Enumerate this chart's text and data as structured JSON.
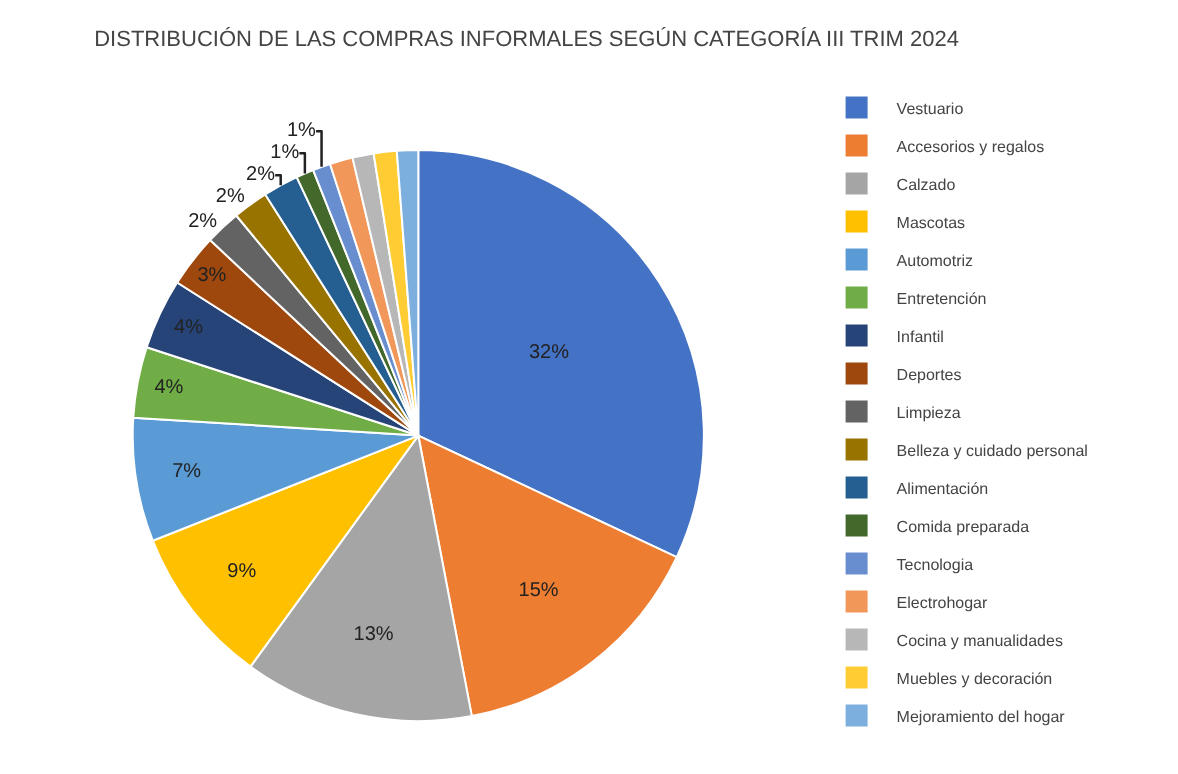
{
  "chart_data": {
    "type": "pie",
    "title": "DISTRIBUCIÓN DE LAS COMPRAS INFORMALES SEGÚN CATEGORÍA III TRIM 2024",
    "categories": [
      "Vestuario",
      "Accesorios y regalos",
      "Calzado",
      "Mascotas",
      "Automotriz",
      "Entretención",
      "Infantil",
      "Deportes",
      "Limpieza",
      "Belleza y cuidado personal",
      "Alimentación",
      "Comida preparada",
      "Tecnologia",
      "Electrohogar",
      "Cocina y manualidades",
      "Muebles y decoración",
      "Mejoramiento del hogar"
    ],
    "values": [
      32,
      15,
      13,
      9,
      7,
      4,
      4,
      3,
      2,
      2,
      2,
      1,
      1,
      1.3,
      1.2,
      1.3,
      1.2
    ],
    "value_labels": [
      "32%",
      "15%",
      "13%",
      "9%",
      "7%",
      "4%",
      "4%",
      "3%",
      "2%",
      "2%",
      "2%",
      "1%",
      "1%",
      null,
      null,
      null,
      null
    ],
    "colors": [
      "#4472c4",
      "#ed7d31",
      "#a5a5a5",
      "#ffc000",
      "#5b9bd5",
      "#70ad47",
      "#264478",
      "#9e480e",
      "#636363",
      "#997300",
      "#255e91",
      "#43682b",
      "#698ed0",
      "#f1975a",
      "#b7b7b7",
      "#ffcd33",
      "#7cafdd"
    ],
    "legend": "right"
  }
}
